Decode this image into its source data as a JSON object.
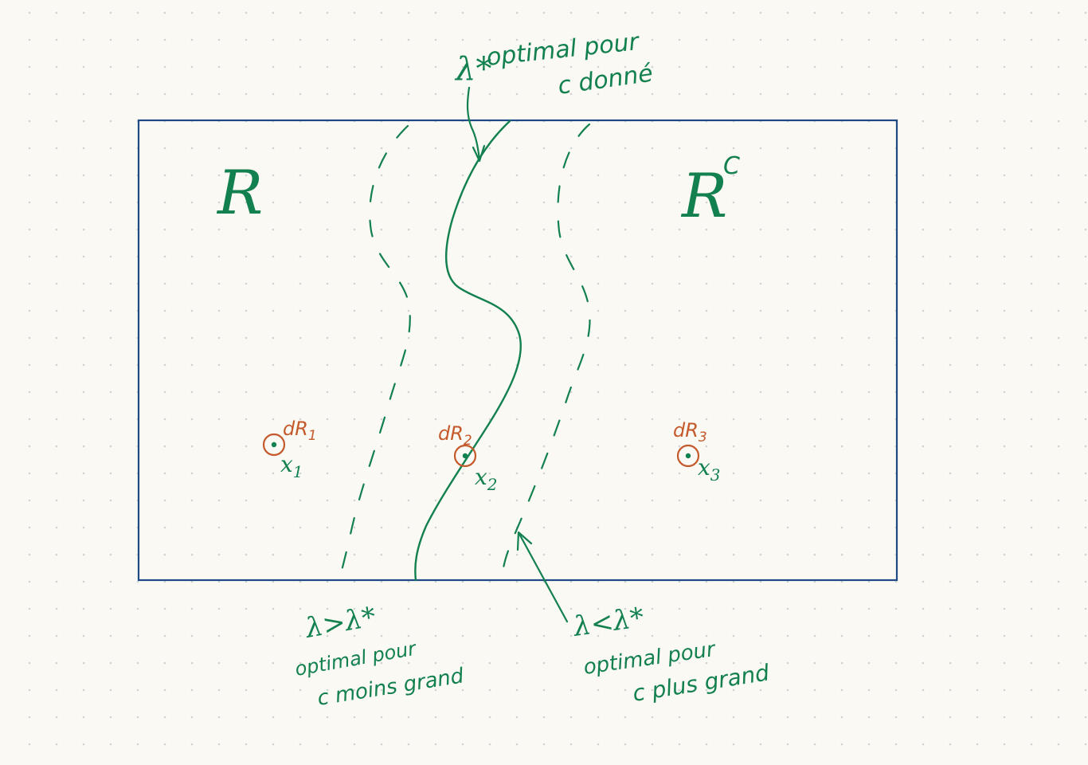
{
  "colors": {
    "background": "#faf9f3",
    "dot_grid": "#cfd3d6",
    "box": "#1f4a86",
    "green_ink": "#13804f",
    "orange_ink": "#c45a2c"
  },
  "regions": {
    "left": "R",
    "right": "R",
    "right_superscript": "C"
  },
  "top_annotation": {
    "symbol": "λ*",
    "line1": "optimal pour",
    "line2": "c donné"
  },
  "bottom_left_annotation": {
    "inequality": "λ>λ*",
    "line1": "optimal pour",
    "line2": "c moins grand"
  },
  "bottom_right_annotation": {
    "inequality": "λ<λ*",
    "line1": "optimal pour",
    "line2": "c plus grand"
  },
  "points": [
    {
      "label": "x1",
      "base": "x",
      "sub": "1",
      "measure": "dR1",
      "measure_base": "dR",
      "measure_sub": "1"
    },
    {
      "label": "x2",
      "base": "x",
      "sub": "2",
      "measure": "dR2",
      "measure_base": "dR",
      "measure_sub": "2"
    },
    {
      "label": "x3",
      "base": "x",
      "sub": "3",
      "measure": "dR3",
      "measure_base": "dR",
      "measure_sub": "3"
    }
  ]
}
